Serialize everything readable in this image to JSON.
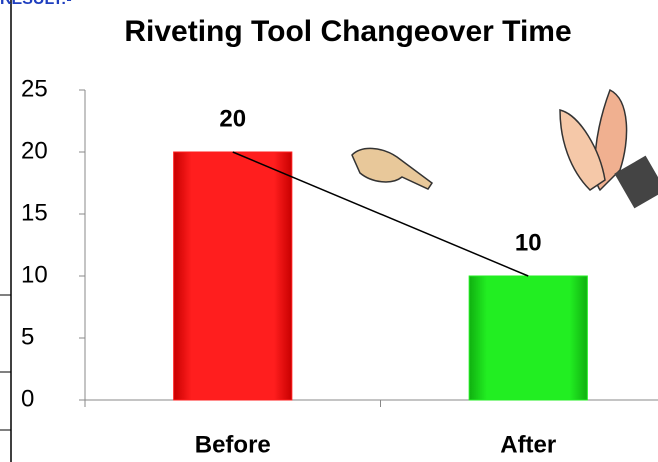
{
  "label": "RESULT:-",
  "chart_data": {
    "type": "bar",
    "title": "Riveting Tool Changeover Time",
    "categories": [
      "Before",
      "After"
    ],
    "values": [
      20,
      10
    ],
    "colors": [
      "#ff1e1e",
      "#22ee22"
    ],
    "ylim": [
      0,
      25
    ],
    "yticks": [
      0,
      5,
      10,
      15,
      20,
      25
    ],
    "grid": false,
    "trend_line": true
  }
}
